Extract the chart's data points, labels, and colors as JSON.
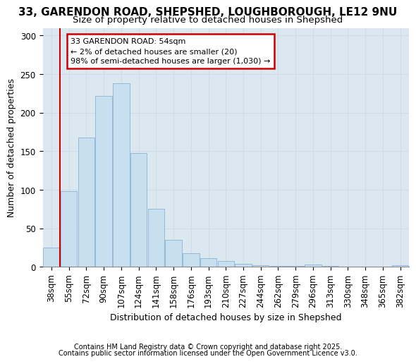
{
  "title_line1": "33, GARENDON ROAD, SHEPSHED, LOUGHBOROUGH, LE12 9NU",
  "title_line2": "Size of property relative to detached houses in Shepshed",
  "xlabel": "Distribution of detached houses by size in Shepshed",
  "ylabel": "Number of detached properties",
  "categories": [
    "38sqm",
    "55sqm",
    "72sqm",
    "90sqm",
    "107sqm",
    "124sqm",
    "141sqm",
    "158sqm",
    "176sqm",
    "193sqm",
    "210sqm",
    "227sqm",
    "244sqm",
    "262sqm",
    "279sqm",
    "296sqm",
    "313sqm",
    "330sqm",
    "348sqm",
    "365sqm",
    "382sqm"
  ],
  "values": [
    25,
    98,
    168,
    222,
    238,
    148,
    75,
    35,
    18,
    11,
    8,
    4,
    2,
    1,
    1,
    3,
    1,
    0,
    0,
    0,
    2
  ],
  "bar_color": "#c8dff0",
  "bar_edge_color": "#8ab4d4",
  "grid_color": "#d0dce8",
  "background_color": "#dce8f0",
  "annotation_box_text": "33 GARENDON ROAD: 54sqm\n← 2% of detached houses are smaller (20)\n98% of semi-detached houses are larger (1,030) →",
  "annotation_box_color": "#ffffff",
  "annotation_box_edge_color": "#cc0000",
  "red_line_x": 0.5,
  "ylim": [
    0,
    310
  ],
  "yticks": [
    0,
    50,
    100,
    150,
    200,
    250,
    300
  ],
  "footer_line1": "Contains HM Land Registry data © Crown copyright and database right 2025.",
  "footer_line2": "Contains public sector information licensed under the Open Government Licence v3.0.",
  "title_fontsize": 11,
  "subtitle_fontsize": 9.5,
  "axis_label_fontsize": 9,
  "tick_fontsize": 8.5,
  "annotation_fontsize": 8,
  "footer_fontsize": 7
}
